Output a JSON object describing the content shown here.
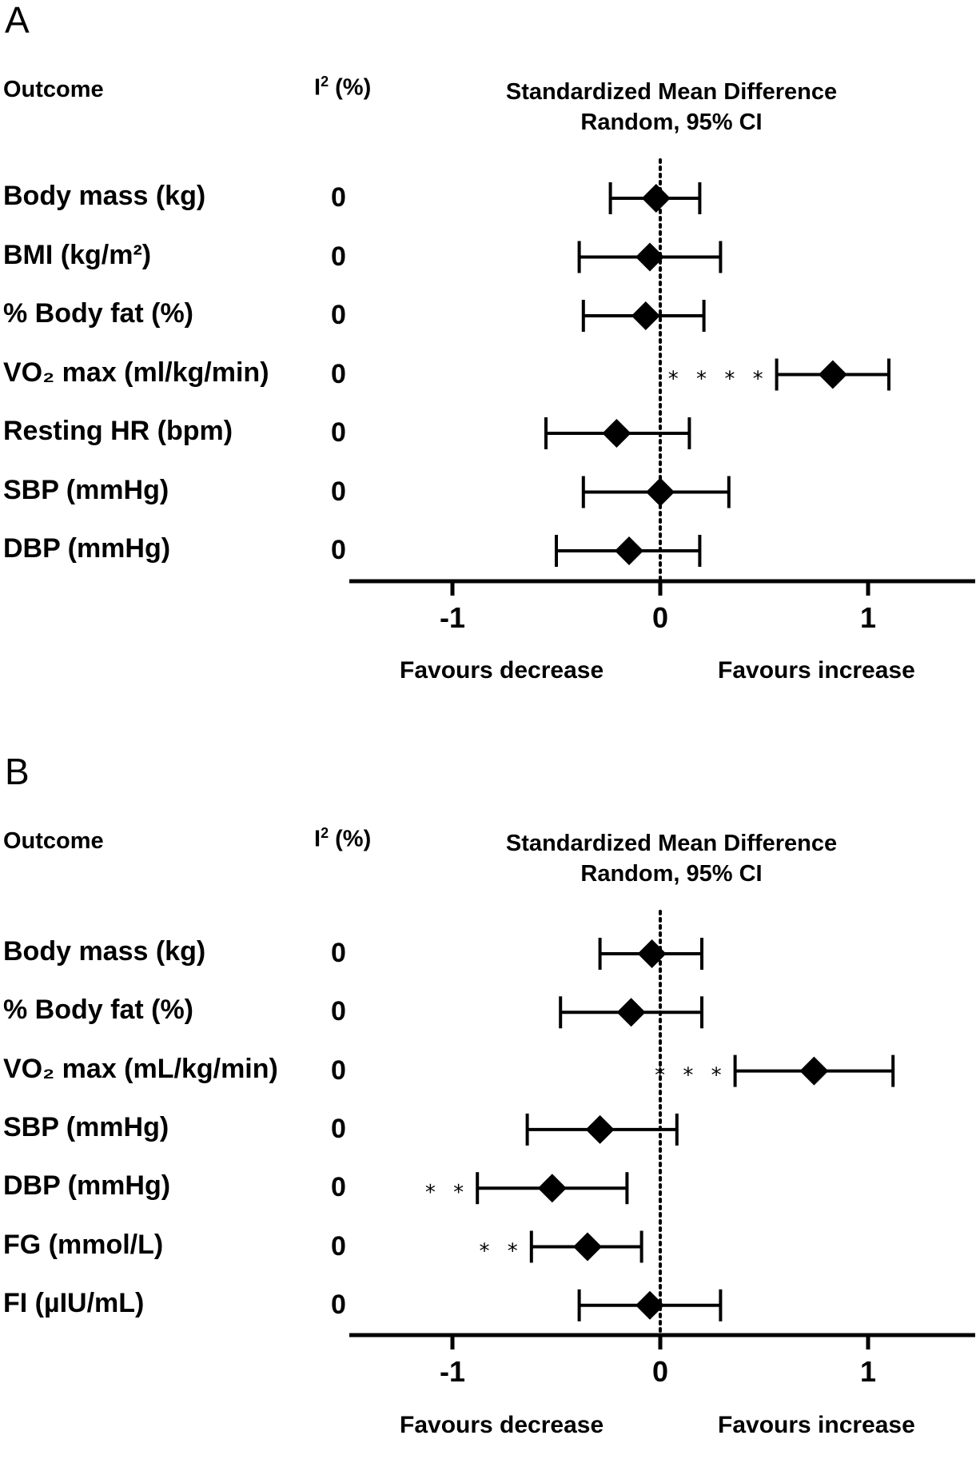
{
  "chart_data": [
    {
      "type": "forest",
      "panel": "A",
      "headers": {
        "outcome": "Outcome",
        "i2": "I",
        "i2_sup": "2",
        "i2_unit": " (%)",
        "smd_line1": "Standardized Mean Difference",
        "smd_line2": "Random, 95% CI"
      },
      "xlim": [
        -1.5,
        1.5
      ],
      "xticks": [
        -1,
        0,
        1
      ],
      "xtick_labels": [
        "-1",
        "0",
        "1"
      ],
      "favours_left": "Favours decrease",
      "favours_right": "Favours increase",
      "rows": [
        {
          "label": "Body mass (kg)",
          "i2": "0",
          "est": -0.02,
          "lo": -0.24,
          "hi": 0.19,
          "sig": ""
        },
        {
          "label": "BMI (kg/m²)",
          "i2": "0",
          "est": -0.05,
          "lo": -0.39,
          "hi": 0.29,
          "sig": ""
        },
        {
          "label": "% Body fat (%)",
          "i2": "0",
          "est": -0.07,
          "lo": -0.37,
          "hi": 0.21,
          "sig": ""
        },
        {
          "label": "VO₂ max (ml/kg/min)",
          "i2": "0",
          "est": 0.83,
          "lo": 0.56,
          "hi": 1.1,
          "sig": "****"
        },
        {
          "label": "Resting HR (bpm)",
          "i2": "0",
          "est": -0.21,
          "lo": -0.55,
          "hi": 0.14,
          "sig": ""
        },
        {
          "label": "SBP (mmHg)",
          "i2": "0",
          "est": 0.0,
          "lo": -0.37,
          "hi": 0.33,
          "sig": ""
        },
        {
          "label": "DBP (mmHg)",
          "i2": "0",
          "est": -0.15,
          "lo": -0.5,
          "hi": 0.19,
          "sig": ""
        }
      ]
    },
    {
      "type": "forest",
      "panel": "B",
      "headers": {
        "outcome": "Outcome",
        "i2": "I",
        "i2_sup": "2",
        "i2_unit": " (%)",
        "smd_line1": "Standardized Mean Difference",
        "smd_line2": "Random, 95% CI"
      },
      "xlim": [
        -1.5,
        1.5
      ],
      "xticks": [
        -1,
        0,
        1
      ],
      "xtick_labels": [
        "-1",
        "0",
        "1"
      ],
      "favours_left": "Favours decrease",
      "favours_right": "Favours increase",
      "rows": [
        {
          "label": "Body mass (kg)",
          "i2": "0",
          "est": -0.04,
          "lo": -0.29,
          "hi": 0.2,
          "sig": ""
        },
        {
          "label": "% Body fat (%)",
          "i2": "0",
          "est": -0.14,
          "lo": -0.48,
          "hi": 0.2,
          "sig": ""
        },
        {
          "label": "VO₂ max (mL/kg/min)",
          "i2": "0",
          "est": 0.74,
          "lo": 0.36,
          "hi": 1.12,
          "sig": "***"
        },
        {
          "label": "SBP (mmHg)",
          "i2": "0",
          "est": -0.29,
          "lo": -0.64,
          "hi": 0.08,
          "sig": ""
        },
        {
          "label": "DBP (mmHg)",
          "i2": "0",
          "est": -0.52,
          "lo": -0.88,
          "hi": -0.16,
          "sig": "**"
        },
        {
          "label": "FG (mmol/L)",
          "i2": "0",
          "est": -0.35,
          "lo": -0.62,
          "hi": -0.09,
          "sig": "**"
        },
        {
          "label": "FI (µIU/mL)",
          "i2": "0",
          "est": -0.05,
          "lo": -0.39,
          "hi": 0.29,
          "sig": ""
        }
      ]
    }
  ]
}
